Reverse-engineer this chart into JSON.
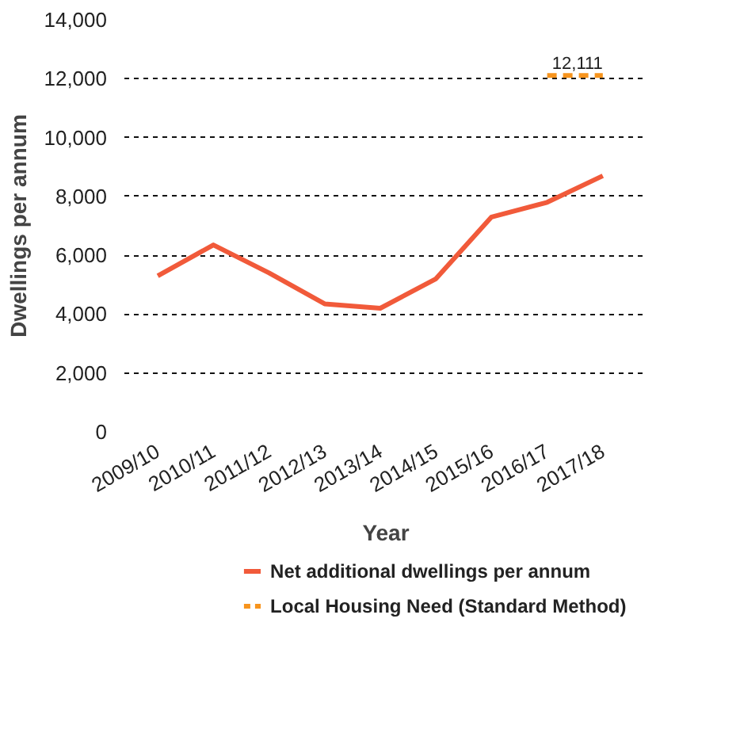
{
  "chart_data": {
    "type": "line",
    "xlabel": "Year",
    "ylabel": "Dwellings per annum",
    "categories": [
      "2009/10",
      "2010/11",
      "2011/12",
      "2012/13",
      "2013/14",
      "2014/15",
      "2015/16",
      "2016/17",
      "2017/18"
    ],
    "series": [
      {
        "name": "Net additional dwellings per annum",
        "color": "#f15a3a",
        "line_style": "solid",
        "values": [
          5300,
          6350,
          5400,
          4350,
          4200,
          5200,
          7300,
          7800,
          8700
        ]
      },
      {
        "name": "Local Housing Need (Standard Method)",
        "color": "#f7941d",
        "line_style": "dashed",
        "x": [
          "2016/17",
          "2017/18"
        ],
        "values": [
          12111,
          12111
        ],
        "value_labels": [
          null,
          "12,111"
        ]
      }
    ],
    "ylim": [
      0,
      14000
    ],
    "yticks": [
      0,
      {
        "value": 2000,
        "label": "2,000"
      },
      {
        "value": 4000,
        "label": "4,000"
      },
      {
        "value": 6000,
        "label": "6,000"
      },
      {
        "value": 8000,
        "label": "8,000"
      },
      {
        "value": 10000,
        "label": "10,000"
      },
      {
        "value": 12000,
        "label": "12,000"
      },
      {
        "value": 14000,
        "label": "14,000"
      }
    ],
    "grid": "y",
    "legend": "bottom",
    "marker": "none"
  }
}
